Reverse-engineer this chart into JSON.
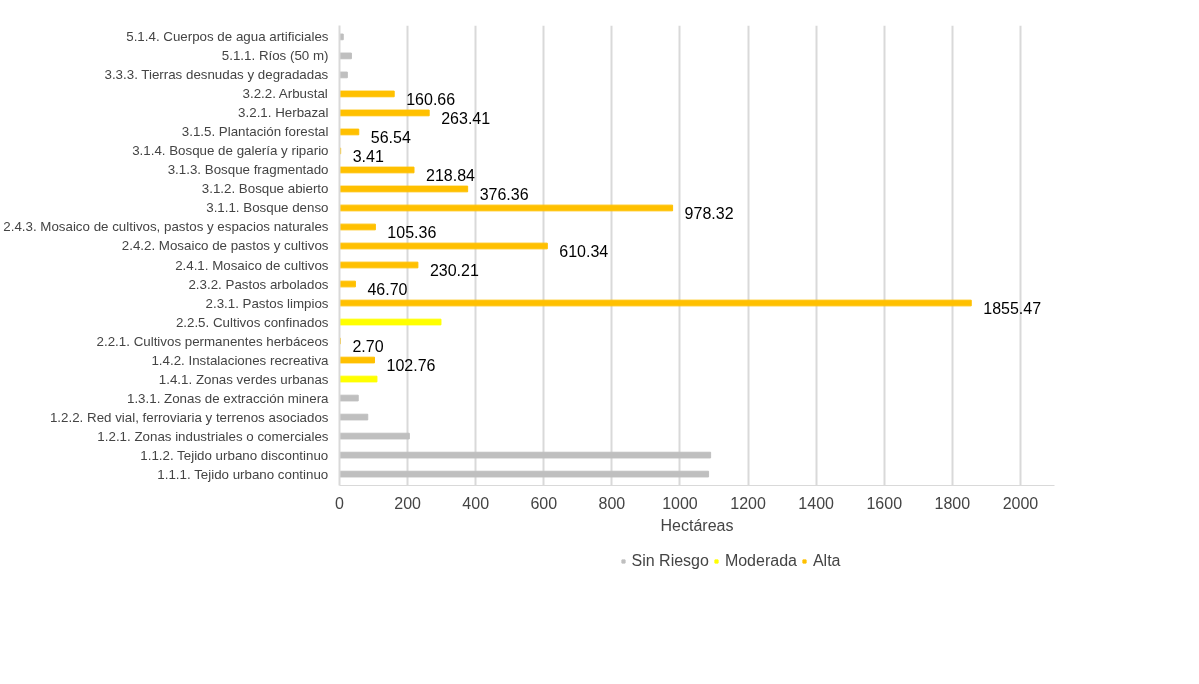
{
  "chart_data": {
    "type": "bar",
    "orientation": "horizontal",
    "categories": [
      "5.1.4. Cuerpos de agua artificiales",
      "5.1.1. Ríos (50 m)",
      "3.3.3. Tierras desnudas y degradadas",
      "3.2.2. Arbustal",
      "3.2.1. Herbazal",
      "3.1.5. Plantación forestal",
      "3.1.4. Bosque de galería y ripario",
      "3.1.3. Bosque fragmentado",
      "3.1.2. Bosque abierto",
      "3.1.1. Bosque denso",
      "2.4.3. Mosaico de cultivos, pastos y espacios naturales",
      "2.4.2. Mosaico de pastos y cultivos",
      "2.4.1. Mosaico de cultivos",
      "2.3.2. Pastos arbolados",
      "2.3.1. Pastos limpios",
      "2.2.5. Cultivos confinados",
      "2.2.1. Cultivos permanentes herbáceos",
      "1.4.2. Instalaciones recreativa",
      "1.4.1. Zonas verdes urbanas",
      "1.3.1. Zonas de extracción minera",
      "1.2.2. Red vial, ferroviaria y terrenos asociados",
      "1.2.1. Zonas industriales o comerciales",
      "1.1.2. Tejido urbano discontinuo",
      "1.1.1. Tejido urbano continuo"
    ],
    "series": [
      {
        "name": "Sin Riesgo",
        "color": "#bfbfbf",
        "values": [
          11,
          35,
          23,
          null,
          null,
          null,
          null,
          null,
          null,
          null,
          null,
          null,
          null,
          null,
          null,
          null,
          null,
          null,
          null,
          55,
          83,
          205,
          1090,
          1084
        ]
      },
      {
        "name": "Moderada",
        "color": "#ffff00",
        "values": [
          null,
          null,
          null,
          null,
          null,
          null,
          null,
          null,
          null,
          null,
          null,
          null,
          null,
          null,
          null,
          298,
          null,
          null,
          110,
          null,
          null,
          null,
          null,
          null
        ]
      },
      {
        "name": "Alta",
        "color": "#ffc000",
        "values": [
          null,
          null,
          null,
          160.66,
          263.41,
          56.54,
          3.41,
          218.84,
          376.36,
          978.32,
          105.36,
          610.34,
          230.21,
          46.7,
          1855.47,
          null,
          2.7,
          102.76,
          null,
          null,
          null,
          null,
          null,
          null
        ],
        "value_labels": [
          null,
          null,
          null,
          "160.66",
          "263.41",
          "56.54",
          "3.41",
          "218.84",
          "376.36",
          "978.32",
          "105.36",
          "610.34",
          "230.21",
          "46.70",
          "1855.47",
          null,
          "2.70",
          "102.76",
          null,
          null,
          null,
          null,
          null,
          null
        ]
      }
    ],
    "xlim": [
      0,
      2100
    ],
    "xticks": [
      0,
      200,
      400,
      600,
      800,
      1000,
      1200,
      1400,
      1600,
      1800,
      2000
    ],
    "xlabel": "Hectáreas",
    "grid": "x",
    "legend": "bottom"
  }
}
